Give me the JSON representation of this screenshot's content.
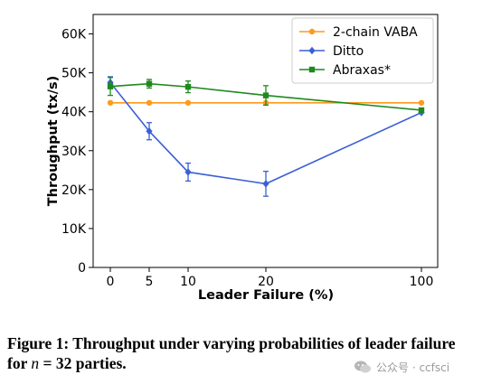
{
  "chart_data": {
    "type": "line",
    "xlabel": "Leader Failure (%)",
    "ylabel": "Throughput (tx/s)",
    "x_ticks": [
      "0",
      "5",
      "10",
      "20",
      "100"
    ],
    "y_ticks": [
      "0",
      "10K",
      "20K",
      "30K",
      "40K",
      "50K",
      "60K"
    ],
    "ylim": [
      0,
      65000
    ],
    "x_scale": "categorical-by-position",
    "x": [
      0,
      5,
      10,
      20,
      100
    ],
    "legend_position": "top-right",
    "grid": false,
    "series": [
      {
        "name": "2-chain VABA",
        "color": "#ff9a1a",
        "marker": "circle",
        "values": [
          42300,
          42300,
          42300,
          42300,
          42300
        ],
        "errors": [
          0,
          0,
          0,
          0,
          0
        ]
      },
      {
        "name": "Ditto",
        "color": "#3b5fd6",
        "marker": "diamond",
        "values": [
          47500,
          35000,
          24500,
          21500,
          39800
        ],
        "errors": [
          1500,
          2200,
          2300,
          3200,
          0
        ]
      },
      {
        "name": "Abraxas*",
        "color": "#1e8a1e",
        "marker": "square",
        "values": [
          46500,
          47200,
          46400,
          44200,
          40400
        ],
        "errors": [
          2300,
          1100,
          1500,
          2500,
          0
        ]
      }
    ]
  },
  "caption": {
    "prefix": "Figure 1: Throughput under varying probabilities of leader failure for ",
    "variable": "n",
    "suffix": " = 32 parties."
  },
  "watermark": {
    "text": "公众号 · ccfsci"
  }
}
